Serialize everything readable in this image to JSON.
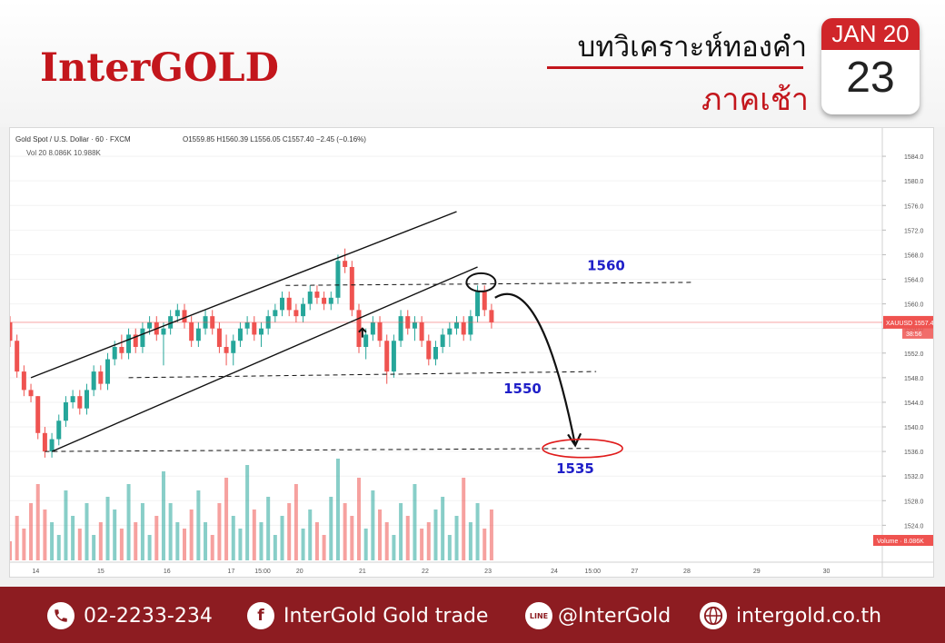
{
  "brand": {
    "name": "InterGOLD"
  },
  "header": {
    "headline": "บทวิเคราะห์ทองคำ",
    "session": "ภาคเช้า"
  },
  "calendar": {
    "month_label": "JAN 20",
    "day": "23"
  },
  "colors": {
    "accent": "#c3161c",
    "footer_bg": "#8d1c21",
    "candle_up": "#26a69a",
    "candle_down": "#ef5350",
    "level_label": "#1f1fc8"
  },
  "footer": {
    "phone": {
      "icon": "phone-icon",
      "text": "02-2233-234"
    },
    "facebook": {
      "icon": "facebook-icon",
      "glyph": "f",
      "text": "InterGold Gold trade"
    },
    "line": {
      "icon": "line-icon",
      "glyph": "LINE",
      "text": "@InterGold"
    },
    "web": {
      "icon": "globe-icon",
      "text": "intergold.co.th"
    }
  },
  "chart_data": {
    "type": "candlestick",
    "symbol_line": "Gold Spot / U.S. Dollar · 60 · FXCM",
    "ohlc_readout": "O1559.85 H1560.39 L1556.05 C1557.40 −2.45 (−0.16%)",
    "volume_legend": "Vol 20  8.086K  10.988K",
    "ylim": [
      1518,
      1588
    ],
    "y_ticks": [
      1584,
      1580,
      1576,
      1572,
      1568,
      1564,
      1560,
      1556,
      1552,
      1548,
      1544,
      1540,
      1536,
      1532,
      1528,
      1524
    ],
    "x_ticks": [
      {
        "t": 3.7,
        "label": "14"
      },
      {
        "t": 13,
        "label": "15"
      },
      {
        "t": 22.5,
        "label": "16"
      },
      {
        "t": 31.7,
        "label": "17"
      },
      {
        "t": 36.2,
        "label": "15:00"
      },
      {
        "t": 41.5,
        "label": "20"
      },
      {
        "t": 50.5,
        "label": "21"
      },
      {
        "t": 59.5,
        "label": "22"
      },
      {
        "t": 68.5,
        "label": "23"
      },
      {
        "t": 78,
        "label": "24"
      },
      {
        "t": 83.5,
        "label": "15:00"
      },
      {
        "t": 89.5,
        "label": "27"
      },
      {
        "t": 97,
        "label": "28"
      },
      {
        "t": 107,
        "label": "29"
      },
      {
        "t": 117,
        "label": "30"
      }
    ],
    "x_range": [
      0,
      125
    ],
    "price_label": {
      "symbol": "XAUUSD",
      "price": "1557.40",
      "countdown": "38:56"
    },
    "volume_label": "Volume · 8.086K",
    "levels": [
      {
        "name": "resistance",
        "price": 1560,
        "label": "1560"
      },
      {
        "name": "support-1",
        "price": 1550,
        "label": "1550"
      },
      {
        "name": "support-2",
        "price": 1535,
        "label": "1535"
      }
    ],
    "candles": [
      [
        1557,
        1558,
        1553,
        1554
      ],
      [
        1554,
        1555,
        1548,
        1549
      ],
      [
        1549,
        1550,
        1545,
        1546
      ],
      [
        1546,
        1547,
        1544,
        1545
      ],
      [
        1545,
        1545,
        1538,
        1539
      ],
      [
        1539,
        1540,
        1535,
        1536
      ],
      [
        1536,
        1539,
        1535,
        1538
      ],
      [
        1538,
        1542,
        1537,
        1541
      ],
      [
        1541,
        1545,
        1540,
        1544
      ],
      [
        1544,
        1546,
        1543,
        1545
      ],
      [
        1545,
        1546,
        1542,
        1543
      ],
      [
        1543,
        1547,
        1542,
        1546
      ],
      [
        1546,
        1550,
        1545,
        1549
      ],
      [
        1549,
        1550,
        1546,
        1547
      ],
      [
        1547,
        1552,
        1546,
        1551
      ],
      [
        1551,
        1554,
        1550,
        1553
      ],
      [
        1553,
        1555,
        1551,
        1552
      ],
      [
        1552,
        1556,
        1551,
        1555
      ],
      [
        1555,
        1556,
        1552,
        1553
      ],
      [
        1553,
        1557,
        1552,
        1556
      ],
      [
        1556,
        1558,
        1555,
        1557
      ],
      [
        1557,
        1558,
        1554,
        1555
      ],
      [
        1555,
        1557,
        1550,
        1556
      ],
      [
        1556,
        1559,
        1555,
        1558
      ],
      [
        1558,
        1560,
        1557,
        1559
      ],
      [
        1559,
        1560,
        1556,
        1557
      ],
      [
        1557,
        1558,
        1553,
        1554
      ],
      [
        1554,
        1557,
        1553,
        1556
      ],
      [
        1556,
        1559,
        1555,
        1558
      ],
      [
        1558,
        1559,
        1555,
        1556
      ],
      [
        1556,
        1557,
        1552,
        1553
      ],
      [
        1553,
        1555,
        1550,
        1552
      ],
      [
        1552,
        1555,
        1550,
        1554
      ],
      [
        1554,
        1557,
        1553,
        1556
      ],
      [
        1556,
        1558,
        1555,
        1557
      ],
      [
        1557,
        1558,
        1554,
        1555
      ],
      [
        1555,
        1557,
        1553,
        1556
      ],
      [
        1556,
        1559,
        1555,
        1558
      ],
      [
        1558,
        1560,
        1557,
        1559
      ],
      [
        1559,
        1562,
        1558,
        1561
      ],
      [
        1561,
        1562,
        1558,
        1559
      ],
      [
        1559,
        1560,
        1557,
        1558
      ],
      [
        1558,
        1561,
        1557,
        1560
      ],
      [
        1560,
        1563,
        1559,
        1562
      ],
      [
        1562,
        1563,
        1560,
        1561
      ],
      [
        1561,
        1562,
        1559,
        1560
      ],
      [
        1560,
        1562,
        1559,
        1561
      ],
      [
        1561,
        1568,
        1560,
        1567
      ],
      [
        1567,
        1569,
        1565,
        1566
      ],
      [
        1566,
        1567,
        1558,
        1559
      ],
      [
        1559,
        1560,
        1552,
        1553
      ],
      [
        1553,
        1556,
        1551,
        1555
      ],
      [
        1555,
        1558,
        1554,
        1557
      ],
      [
        1557,
        1558,
        1553,
        1554
      ],
      [
        1554,
        1555,
        1547,
        1549
      ],
      [
        1549,
        1555,
        1548,
        1554
      ],
      [
        1554,
        1559,
        1553,
        1558
      ],
      [
        1558,
        1559,
        1555,
        1556
      ],
      [
        1556,
        1558,
        1554,
        1557
      ],
      [
        1557,
        1558,
        1553,
        1554
      ],
      [
        1554,
        1555,
        1550,
        1551
      ],
      [
        1551,
        1554,
        1550,
        1553
      ],
      [
        1553,
        1556,
        1552,
        1555
      ],
      [
        1555,
        1557,
        1553,
        1556
      ],
      [
        1556,
        1558,
        1555,
        1557
      ],
      [
        1557,
        1558,
        1554,
        1555
      ],
      [
        1555,
        1559,
        1554,
        1558
      ],
      [
        1558,
        1563,
        1557,
        1562
      ],
      [
        1562,
        1563,
        1558,
        1559
      ],
      [
        1559,
        1560,
        1556,
        1557
      ]
    ],
    "volumes": [
      3,
      7,
      5,
      9,
      12,
      8,
      6,
      4,
      11,
      7,
      5,
      9,
      4,
      6,
      10,
      8,
      5,
      12,
      6,
      9,
      4,
      7,
      14,
      9,
      6,
      5,
      8,
      11,
      6,
      4,
      9,
      13,
      7,
      5,
      15,
      8,
      6,
      10,
      4,
      7,
      9,
      12,
      5,
      8,
      6,
      4,
      10,
      16,
      9,
      7,
      13,
      5,
      11,
      8,
      6,
      4,
      9,
      7,
      12,
      5,
      6,
      8,
      10,
      4,
      7,
      13,
      6,
      9,
      5,
      8
    ],
    "drawings": {
      "channel_upper": [
        [
          3,
          1548
        ],
        [
          64,
          1575
        ]
      ],
      "channel_lower": [
        [
          6,
          1536
        ],
        [
          67,
          1566
        ]
      ],
      "dashed": [
        [
          [
            39.5,
            1563
          ],
          [
            98,
            1563.5
          ]
        ],
        [
          [
            17,
            1548
          ],
          [
            84,
            1549
          ]
        ],
        [
          [
            5,
            1536
          ],
          [
            83,
            1536.5
          ]
        ]
      ],
      "projection": [
        [
          69.5,
          1561
        ],
        [
          81,
          1537
        ]
      ]
    }
  }
}
